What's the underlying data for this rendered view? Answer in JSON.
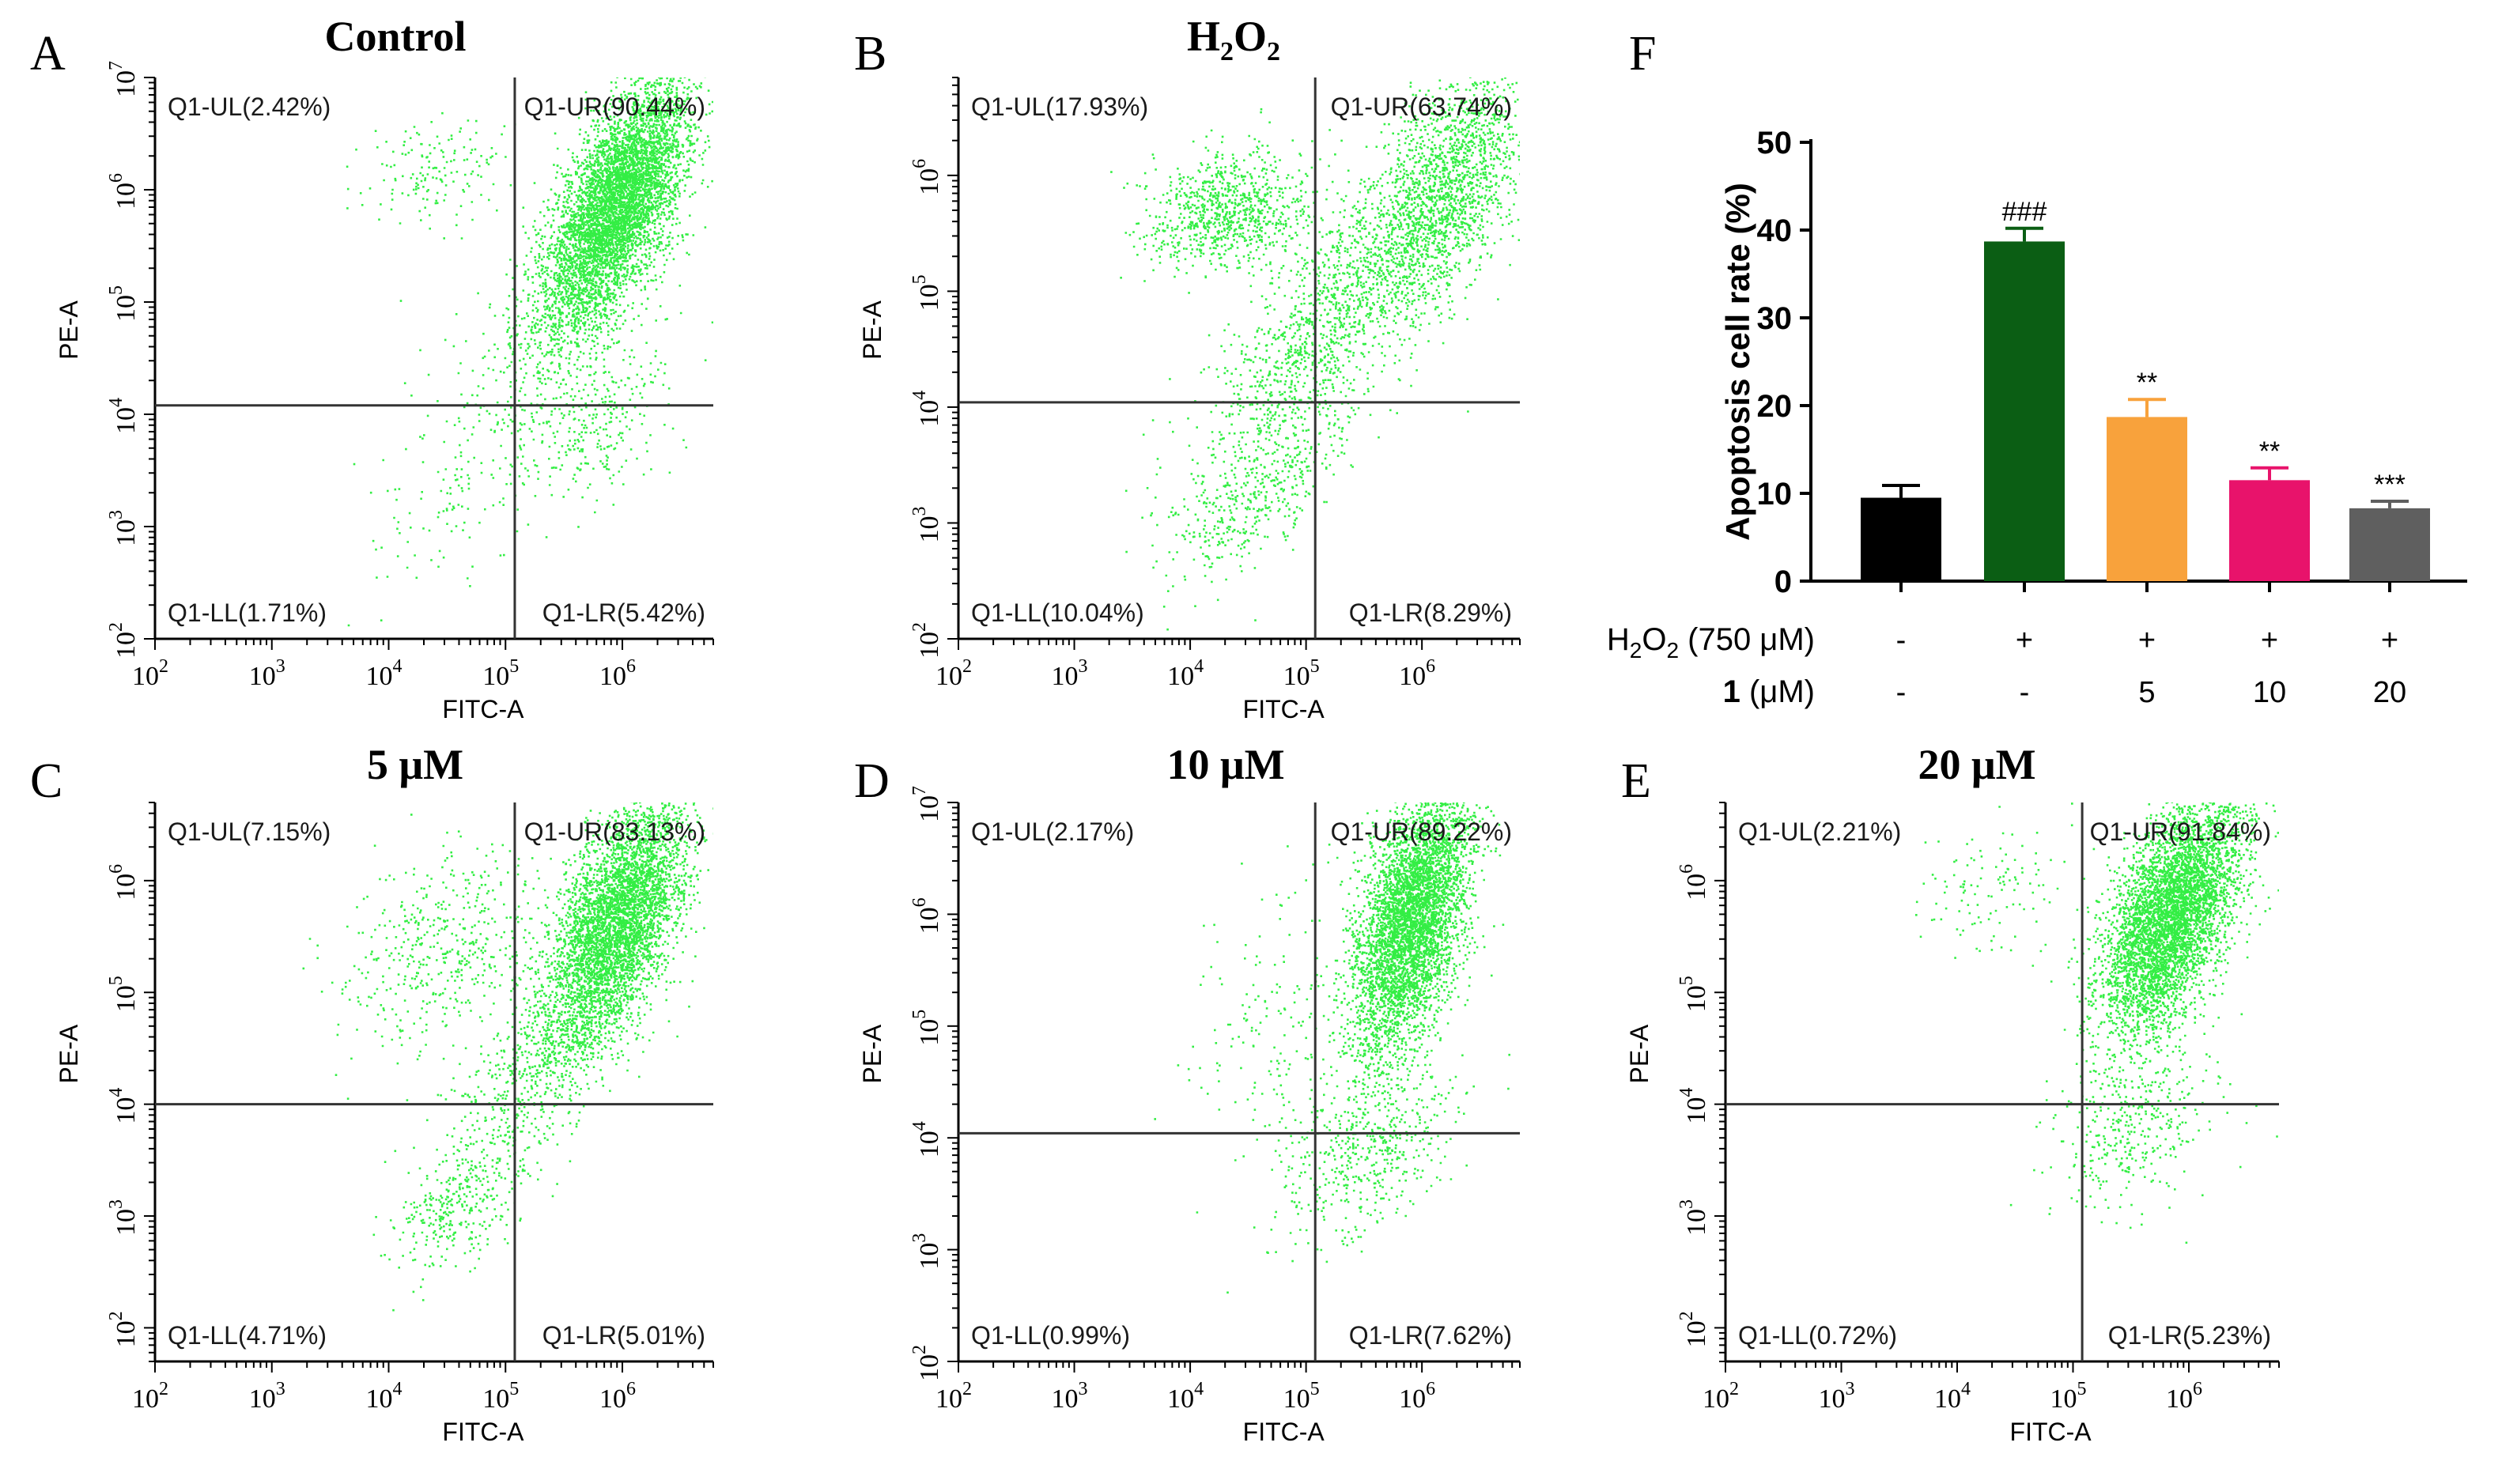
{
  "figure": {
    "panel_letters": [
      "A",
      "B",
      "C",
      "D",
      "E",
      "F"
    ]
  },
  "colors": {
    "dot": "#33ee44",
    "dot_dense": "#22ff33",
    "axis": "#000000",
    "bar_control": "#000000",
    "bar_h2o2": "#0b5e14",
    "bar_5": "#f8a23c",
    "bar_10": "#e8136b",
    "bar_20": "#5f5f5f"
  },
  "chart_data": [
    {
      "type": "scatter",
      "panel": "A",
      "title": "Control",
      "xlabel": "FITC-A",
      "ylabel": "PE-A",
      "xlim": [
        100,
        6000000
      ],
      "ylim": [
        100,
        10000000
      ],
      "x_scale": "log",
      "y_scale": "log",
      "x_ticks": [
        {
          "value": 100,
          "base": "10",
          "exp": "2"
        },
        {
          "value": 1000,
          "base": "10",
          "exp": "3"
        },
        {
          "value": 10000,
          "base": "10",
          "exp": "4"
        },
        {
          "value": 100000,
          "base": "10",
          "exp": "5"
        },
        {
          "value": 1000000,
          "base": "10",
          "exp": "6"
        }
      ],
      "y_ticks": [
        {
          "value": 100,
          "base": "10",
          "exp": "2"
        },
        {
          "value": 1000,
          "base": "10",
          "exp": "3"
        },
        {
          "value": 10000,
          "base": "10",
          "exp": "4"
        },
        {
          "value": 100000,
          "base": "10",
          "exp": "5"
        },
        {
          "value": 1000000,
          "base": "10",
          "exp": "6"
        },
        {
          "value": 10000000,
          "base": "10",
          "exp": "7"
        }
      ],
      "gate": {
        "x": 120000,
        "y": 12000
      },
      "quadrants": {
        "UL": "Q1-UL(2.42%)",
        "UR": "Q1-UR(90.44%)",
        "LL": "Q1-LL(1.71%)",
        "LR": "Q1-LR(5.42%)"
      },
      "clusters": [
        {
          "n": 5200,
          "x": 900000,
          "y": 800000,
          "sx": 0.3,
          "sy": 0.55,
          "rho": 0.65
        },
        {
          "n": 500,
          "x": 300000,
          "y": 70000,
          "sx": 0.45,
          "sy": 0.55,
          "rho": 0.6
        },
        {
          "n": 160,
          "x": 25000,
          "y": 1500000,
          "sx": 0.35,
          "sy": 0.25,
          "rho": 0.2
        },
        {
          "n": 260,
          "x": 600000,
          "y": 8000,
          "sx": 0.3,
          "sy": 0.35,
          "rho": 0.3
        },
        {
          "n": 160,
          "x": 40000,
          "y": 2500,
          "sx": 0.5,
          "sy": 0.5,
          "rho": 0.6
        }
      ]
    },
    {
      "type": "scatter",
      "panel": "B",
      "title_parts": [
        "H",
        "2",
        "O",
        "2"
      ],
      "xlabel": "FITC-A",
      "ylabel": "PE-A",
      "xlim": [
        100,
        7000000
      ],
      "ylim": [
        100,
        7000000
      ],
      "x_scale": "log",
      "y_scale": "log",
      "x_ticks": [
        {
          "value": 100,
          "base": "10",
          "exp": "2"
        },
        {
          "value": 1000,
          "base": "10",
          "exp": "3"
        },
        {
          "value": 10000,
          "base": "10",
          "exp": "4"
        },
        {
          "value": 100000,
          "base": "10",
          "exp": "5"
        },
        {
          "value": 1000000,
          "base": "10",
          "exp": "6"
        }
      ],
      "y_ticks": [
        {
          "value": 100,
          "base": "10",
          "exp": "2"
        },
        {
          "value": 1000,
          "base": "10",
          "exp": "3"
        },
        {
          "value": 10000,
          "base": "10",
          "exp": "4"
        },
        {
          "value": 100000,
          "base": "10",
          "exp": "5"
        },
        {
          "value": 1000000,
          "base": "10",
          "exp": "6"
        }
      ],
      "gate": {
        "x": 120000,
        "y": 11000
      },
      "quadrants": {
        "UL": "Q1-UL(17.93%)",
        "UR": "Q1-UR(63.74%)",
        "LL": "Q1-LL(10.04%)",
        "LR": "Q1-LR(8.29%)"
      },
      "clusters": [
        {
          "n": 1800,
          "x": 1500000,
          "y": 700000,
          "sx": 0.35,
          "sy": 0.55,
          "rho": 0.55
        },
        {
          "n": 900,
          "x": 20000,
          "y": 500000,
          "sx": 0.35,
          "sy": 0.25,
          "rho": 0.2
        },
        {
          "n": 1300,
          "x": 150000,
          "y": 60000,
          "sx": 0.55,
          "sy": 0.7,
          "rho": 0.8
        },
        {
          "n": 450,
          "x": 40000,
          "y": 2000,
          "sx": 0.4,
          "sy": 0.4,
          "rho": 0.7
        }
      ]
    },
    {
      "type": "scatter",
      "panel": "C",
      "title": "5 μM",
      "xlabel": "FITC-A",
      "ylabel": "PE-A",
      "xlim": [
        100,
        6000000
      ],
      "ylim": [
        50,
        5000000
      ],
      "x_scale": "log",
      "y_scale": "log",
      "x_ticks": [
        {
          "value": 100,
          "base": "10",
          "exp": "2"
        },
        {
          "value": 1000,
          "base": "10",
          "exp": "3"
        },
        {
          "value": 10000,
          "base": "10",
          "exp": "4"
        },
        {
          "value": 100000,
          "base": "10",
          "exp": "5"
        },
        {
          "value": 1000000,
          "base": "10",
          "exp": "6"
        }
      ],
      "y_ticks": [
        {
          "value": 100,
          "base": "10",
          "exp": "2"
        },
        {
          "value": 1000,
          "base": "10",
          "exp": "3"
        },
        {
          "value": 10000,
          "base": "10",
          "exp": "4"
        },
        {
          "value": 100000,
          "base": "10",
          "exp": "5"
        },
        {
          "value": 1000000,
          "base": "10",
          "exp": "6"
        }
      ],
      "gate": {
        "x": 120000,
        "y": 10000
      },
      "quadrants": {
        "UL": "Q1-UL(7.15%)",
        "UR": "Q1-UR(83.13%)",
        "LL": "Q1-LL(4.71%)",
        "LR": "Q1-LR(5.01%)"
      },
      "clusters": [
        {
          "n": 4300,
          "x": 900000,
          "y": 450000,
          "sx": 0.3,
          "sy": 0.55,
          "rho": 0.6
        },
        {
          "n": 500,
          "x": 30000,
          "y": 250000,
          "sx": 0.45,
          "sy": 0.45,
          "rho": 0.3
        },
        {
          "n": 700,
          "x": 250000,
          "y": 30000,
          "sx": 0.45,
          "sy": 0.55,
          "rho": 0.7
        },
        {
          "n": 350,
          "x": 40000,
          "y": 1500,
          "sx": 0.3,
          "sy": 0.35,
          "rho": 0.5
        }
      ]
    },
    {
      "type": "scatter",
      "panel": "D",
      "title": "10 μM",
      "xlabel": "FITC-A",
      "ylabel": "PE-A",
      "xlim": [
        100,
        7000000
      ],
      "ylim": [
        100,
        10000000
      ],
      "x_scale": "log",
      "y_scale": "log",
      "x_ticks": [
        {
          "value": 100,
          "base": "10",
          "exp": "2"
        },
        {
          "value": 1000,
          "base": "10",
          "exp": "3"
        },
        {
          "value": 10000,
          "base": "10",
          "exp": "4"
        },
        {
          "value": 100000,
          "base": "10",
          "exp": "5"
        },
        {
          "value": 1000000,
          "base": "10",
          "exp": "6"
        }
      ],
      "y_ticks": [
        {
          "value": 100,
          "base": "10",
          "exp": "2"
        },
        {
          "value": 1000,
          "base": "10",
          "exp": "3"
        },
        {
          "value": 10000,
          "base": "10",
          "exp": "4"
        },
        {
          "value": 100000,
          "base": "10",
          "exp": "5"
        },
        {
          "value": 1000000,
          "base": "10",
          "exp": "6"
        },
        {
          "value": 10000000,
          "base": "10",
          "exp": "7"
        }
      ],
      "gate": {
        "x": 120000,
        "y": 11000
      },
      "quadrants": {
        "UL": "Q1-UL(2.17%)",
        "UR": "Q1-UR(89.22%)",
        "LL": "Q1-LL(0.99%)",
        "LR": "Q1-LR(7.62%)"
      },
      "clusters": [
        {
          "n": 4600,
          "x": 800000,
          "y": 900000,
          "sx": 0.25,
          "sy": 0.6,
          "rho": 0.5
        },
        {
          "n": 500,
          "x": 350000,
          "y": 8000,
          "sx": 0.35,
          "sy": 0.4,
          "rho": 0.4
        },
        {
          "n": 200,
          "x": 60000,
          "y": 100000,
          "sx": 0.4,
          "sy": 0.7,
          "rho": 0.2
        }
      ]
    },
    {
      "type": "scatter",
      "panel": "E",
      "title": "20 μM",
      "xlabel": "FITC-A",
      "ylabel": "PE-A",
      "xlim": [
        100,
        6000000
      ],
      "ylim": [
        50,
        5000000
      ],
      "x_scale": "log",
      "y_scale": "log",
      "x_ticks": [
        {
          "value": 100,
          "base": "10",
          "exp": "2"
        },
        {
          "value": 1000,
          "base": "10",
          "exp": "3"
        },
        {
          "value": 10000,
          "base": "10",
          "exp": "4"
        },
        {
          "value": 100000,
          "base": "10",
          "exp": "5"
        },
        {
          "value": 1000000,
          "base": "10",
          "exp": "6"
        }
      ],
      "y_ticks": [
        {
          "value": 100,
          "base": "10",
          "exp": "2"
        },
        {
          "value": 1000,
          "base": "10",
          "exp": "3"
        },
        {
          "value": 10000,
          "base": "10",
          "exp": "4"
        },
        {
          "value": 100000,
          "base": "10",
          "exp": "5"
        },
        {
          "value": 1000000,
          "base": "10",
          "exp": "6"
        }
      ],
      "gate": {
        "x": 120000,
        "y": 10000
      },
      "quadrants": {
        "UL": "Q1-UL(2.21%)",
        "UR": "Q1-UR(91.84%)",
        "LL": "Q1-LL(0.72%)",
        "LR": "Q1-LR(5.23%)"
      },
      "clusters": [
        {
          "n": 5000,
          "x": 700000,
          "y": 500000,
          "sx": 0.3,
          "sy": 0.55,
          "rho": 0.55
        },
        {
          "n": 350,
          "x": 350000,
          "y": 6000,
          "sx": 0.35,
          "sy": 0.35,
          "rho": 0.4
        },
        {
          "n": 120,
          "x": 20000,
          "y": 800000,
          "sx": 0.35,
          "sy": 0.3,
          "rho": 0.2
        }
      ]
    },
    {
      "type": "bar",
      "panel": "F",
      "ylabel": "Apoptosis cell rate (%)",
      "ylim": [
        0,
        50
      ],
      "y_ticks": [
        0,
        10,
        20,
        30,
        40,
        50
      ],
      "categories": [
        "Control",
        "H2O2",
        "5 μM",
        "10 μM",
        "20 μM"
      ],
      "values": [
        9.5,
        38.7,
        18.7,
        11.5,
        8.3
      ],
      "errors": [
        1.4,
        1.5,
        2.0,
        1.4,
        0.8
      ],
      "significance": [
        "",
        "###",
        "**",
        "**",
        "***"
      ],
      "treatment_rows": [
        {
          "label_parts": [
            "H",
            "2",
            "O",
            "2",
            " (750 μM)"
          ],
          "values": [
            "-",
            "+",
            "+",
            "+",
            "+"
          ]
        },
        {
          "label_parts": [
            "1",
            " (μM)"
          ],
          "values": [
            "-",
            "-",
            "5",
            "10",
            "20"
          ]
        }
      ]
    }
  ]
}
